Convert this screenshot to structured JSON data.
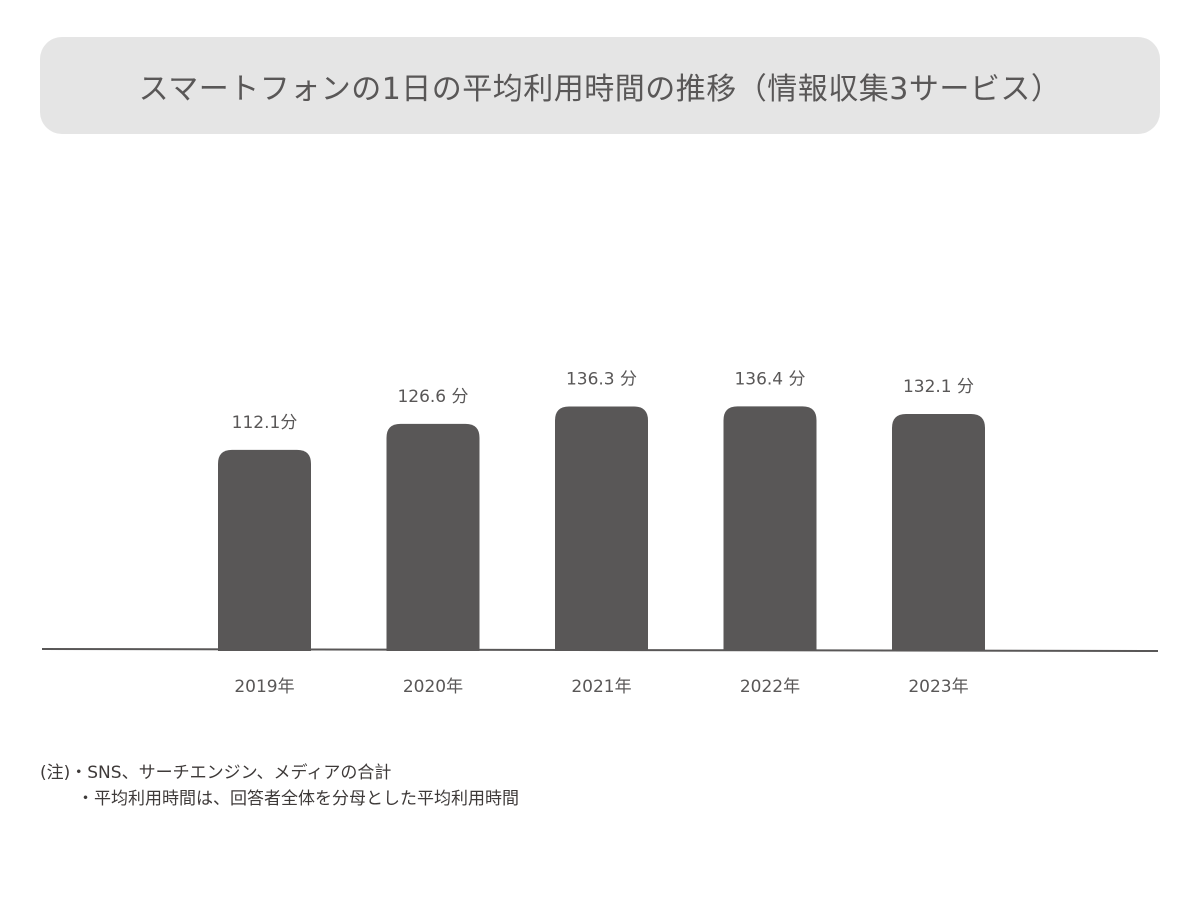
{
  "chart_data": {
    "type": "bar",
    "title": "スマートフォンの1日の平均利用時間の推移（情報収集3サービス）",
    "categories": [
      "2019年",
      "2020年",
      "2021年",
      "2022年",
      "2023年"
    ],
    "values": [
      112.1,
      126.6,
      136.3,
      136.4,
      132.1
    ],
    "data_labels": [
      "112.1分",
      "126.6 分",
      "136.3 分",
      "136.4 分",
      "132.1 分"
    ],
    "xlabel": "",
    "ylabel": "",
    "ylim": [
      0,
      140
    ],
    "grid": false,
    "legend": "none",
    "bar_color": "#595757",
    "title_bg_color": "#e5e5e5"
  },
  "notes": {
    "line1": "(注)・SNS、サーチエンジン、メディアの合計",
    "line2": "・平均利用時間は、回答者全体を分母とした平均利用時間"
  }
}
